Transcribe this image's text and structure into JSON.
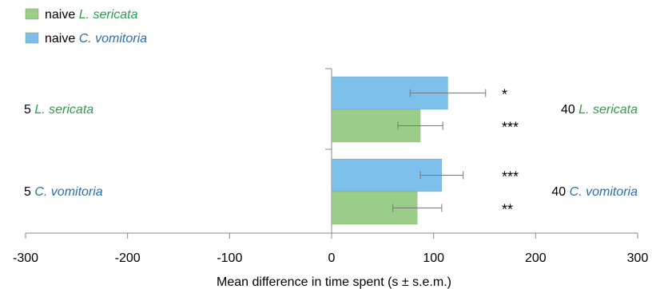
{
  "colors": {
    "naive_l_sericata": "#9ACD87",
    "naive_c_vomitoria": "#7DC0EB",
    "l_sericata_text": "#2E9B4E",
    "c_vomitoria_text": "#2B6EA8",
    "axis": "#888888",
    "error_bar": "#777777"
  },
  "legend": [
    {
      "prefix": "naive ",
      "species": "L. sericata",
      "color_key": "naive_l_sericata",
      "text_color_key": "l_sericata_text"
    },
    {
      "prefix": "naive ",
      "species": "C. vomitoria",
      "color_key": "naive_c_vomitoria",
      "text_color_key": "c_vomitoria_text"
    }
  ],
  "chart_data": {
    "type": "bar",
    "orientation": "horizontal",
    "xlabel": "Mean difference in time spent (s ± s.e.m.)",
    "xlim": [
      -300,
      300
    ],
    "xticks": [
      -300,
      -200,
      -100,
      0,
      100,
      200,
      300
    ],
    "groups": [
      {
        "left_label_num": "5 ",
        "left_label_species": "L. sericata",
        "right_label_num": "40 ",
        "right_label_species": "L. sericata",
        "species_color_key": "l_sericata_text",
        "bars": [
          {
            "series": "naive C. vomitoria",
            "color_key": "naive_c_vomitoria",
            "value": 114,
            "error": 37,
            "sig": "*"
          },
          {
            "series": "naive L. sericata",
            "color_key": "naive_l_sericata",
            "value": 87,
            "error": 22,
            "sig": "***"
          }
        ]
      },
      {
        "left_label_num": "5 ",
        "left_label_species": "C. vomitoria",
        "right_label_num": "40 ",
        "right_label_species": "C. vomitoria",
        "species_color_key": "c_vomitoria_text",
        "bars": [
          {
            "series": "naive C. vomitoria",
            "color_key": "naive_c_vomitoria",
            "value": 108,
            "error": 21,
            "sig": "***"
          },
          {
            "series": "naive L. sericata",
            "color_key": "naive_l_sericata",
            "value": 84,
            "error": 24,
            "sig": "**"
          }
        ]
      }
    ]
  }
}
